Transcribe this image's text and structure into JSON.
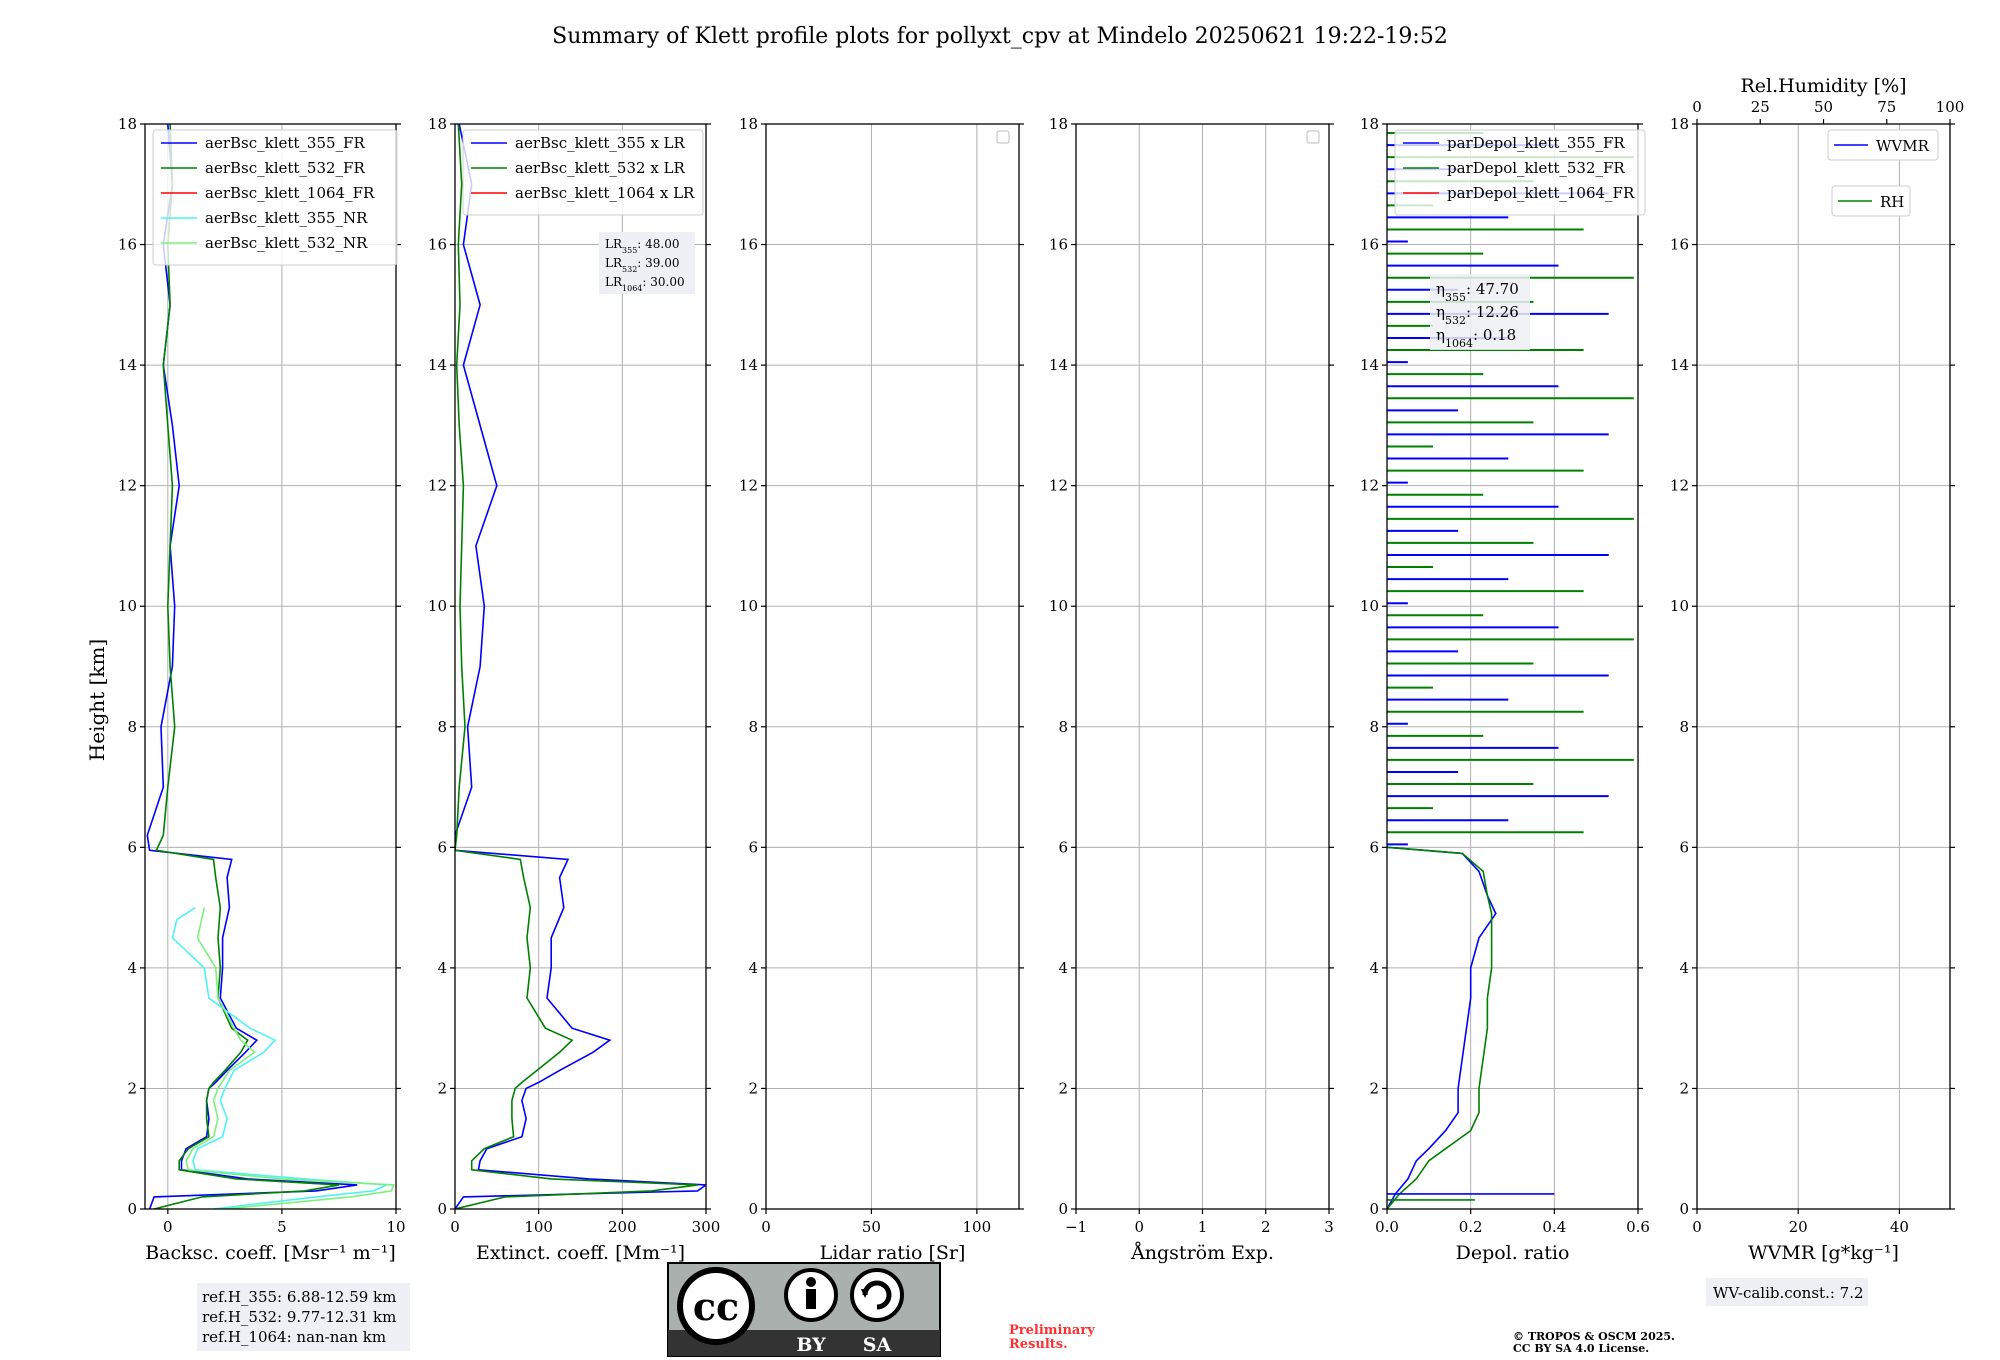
{
  "title": "Summary of Klett profile plots for pollyxt_cpv at Mindelo 20250621 19:22-19:52",
  "ylabel": "Height [km]",
  "colors": {
    "b355": "#0000ff",
    "b532": "#008000",
    "b1064": "#ff0000",
    "nr355": "#4ef3f3",
    "nr532": "#7ef07e",
    "grid": "#b0b0b0",
    "legend_bg": "#eef0f5"
  },
  "chart_data": [
    {
      "type": "line",
      "id": "bsc",
      "xlabel": "Backsc. coeff. [Msr⁻¹ m⁻¹]",
      "xlim": [
        -1,
        10
      ],
      "xticks": [
        0,
        5,
        10
      ],
      "xtick_labels": [
        "0",
        "5",
        "10"
      ],
      "ylim": [
        0,
        18
      ],
      "yticks": [
        0,
        2,
        4,
        6,
        8,
        10,
        12,
        14,
        16,
        18
      ],
      "legend": [
        "aerBsc_klett_355_FR",
        "aerBsc_klett_532_FR",
        "aerBsc_klett_1064_FR",
        "aerBsc_klett_355_NR",
        "aerBsc_klett_532_NR"
      ],
      "series": [
        {
          "name": "aerBsc_klett_355_FR",
          "y": [
            0,
            0.2,
            0.3,
            0.4,
            0.5,
            0.65,
            0.8,
            1.0,
            1.2,
            1.5,
            1.8,
            2.0,
            2.1,
            2.3,
            2.6,
            2.8,
            3.0,
            3.5,
            4.0,
            4.5,
            5.0,
            5.5,
            5.8,
            5.95,
            6.2,
            7,
            8,
            9,
            10,
            11,
            12,
            13,
            14,
            15,
            16,
            17,
            18
          ],
          "x": [
            -0.8,
            -0.6,
            6.5,
            8.3,
            3.5,
            0.6,
            0.6,
            0.8,
            1.7,
            1.8,
            1.7,
            1.8,
            2.1,
            2.6,
            3.4,
            3.9,
            3.0,
            2.3,
            2.4,
            2.4,
            2.7,
            2.6,
            2.8,
            -0.8,
            -0.9,
            -0.2,
            -0.3,
            0.2,
            0.3,
            0.1,
            0.5,
            0.2,
            -0.2,
            0.1,
            -0.2,
            0.2,
            0.0
          ]
        },
        {
          "name": "aerBsc_klett_532_FR",
          "y": [
            0,
            0.2,
            0.3,
            0.4,
            0.5,
            0.65,
            0.8,
            1.0,
            1.2,
            1.5,
            1.8,
            2.0,
            2.1,
            2.3,
            2.6,
            2.8,
            3.0,
            3.5,
            4.0,
            4.5,
            5.0,
            5.5,
            5.8,
            5.95,
            6.2,
            7,
            8,
            9,
            10,
            11,
            12,
            13,
            14,
            15,
            16,
            17,
            18
          ],
          "x": [
            -0.6,
            1.5,
            6.0,
            7.5,
            3.0,
            0.5,
            0.5,
            0.9,
            1.8,
            1.7,
            1.7,
            1.8,
            2.0,
            2.5,
            3.2,
            3.5,
            2.8,
            2.2,
            2.3,
            2.2,
            2.3,
            2.1,
            2.0,
            -0.5,
            -0.2,
            0.0,
            0.3,
            0.1,
            0.0,
            0.1,
            0.2,
            0.0,
            -0.2,
            0.1,
            0.0,
            0.2,
            0.1
          ]
        },
        {
          "name": "aerBsc_klett_355_NR",
          "y": [
            0,
            0.2,
            0.3,
            0.4,
            0.5,
            0.65,
            0.8,
            1.0,
            1.2,
            1.5,
            1.8,
            2.0,
            2.3,
            2.6,
            2.8,
            3.0,
            3.5,
            4.0,
            4.5,
            4.8,
            5.0
          ],
          "x": [
            2.0,
            6.5,
            9.0,
            9.6,
            6.0,
            1.2,
            1.1,
            1.3,
            2.4,
            2.6,
            2.3,
            2.5,
            2.9,
            4.2,
            4.7,
            3.6,
            1.8,
            1.6,
            0.2,
            0.4,
            1.2
          ]
        },
        {
          "name": "aerBsc_klett_532_NR",
          "y": [
            0,
            0.2,
            0.3,
            0.4,
            0.5,
            0.65,
            0.8,
            1.0,
            1.2,
            1.5,
            1.8,
            2.0,
            2.3,
            2.6,
            2.8,
            3.0,
            3.5,
            4.0,
            4.5,
            5.0
          ],
          "x": [
            2.5,
            8.0,
            9.8,
            9.9,
            5.0,
            0.9,
            0.8,
            1.1,
            2.0,
            2.2,
            2.0,
            2.2,
            2.7,
            3.8,
            3.2,
            2.9,
            2.2,
            2.1,
            1.3,
            1.6
          ]
        }
      ],
      "annotation": [
        "ref.H_355: 6.88-12.59 km",
        "ref.H_532: 9.77-12.31 km",
        "ref.H_1064: nan-nan km"
      ]
    },
    {
      "type": "line",
      "id": "ext",
      "xlabel": "Extinct. coeff. [Mm⁻¹]",
      "xlim": [
        0,
        300
      ],
      "xticks": [
        0,
        100,
        200,
        300
      ],
      "xtick_labels": [
        "0",
        "100",
        "200",
        "300"
      ],
      "ylim": [
        0,
        18
      ],
      "yticks": [
        0,
        2,
        4,
        6,
        8,
        10,
        12,
        14,
        16,
        18
      ],
      "legend": [
        "aerBsc_klett_355 x LR",
        "aerBsc_klett_532 x LR",
        "aerBsc_klett_1064 x LR"
      ],
      "series": [
        {
          "name": "aerBsc_klett_355 x LR",
          "y": [
            0,
            0.2,
            0.3,
            0.4,
            0.5,
            0.65,
            0.8,
            1.0,
            1.2,
            1.5,
            1.8,
            2.0,
            2.1,
            2.3,
            2.6,
            2.8,
            3.0,
            3.5,
            4.0,
            4.5,
            5.0,
            5.5,
            5.8,
            5.95,
            6.2,
            7,
            8,
            9,
            10,
            11,
            12,
            13,
            14,
            15,
            16,
            17,
            18
          ],
          "x": [
            0,
            10,
            290,
            300,
            160,
            28,
            30,
            38,
            80,
            85,
            80,
            85,
            100,
            125,
            165,
            185,
            140,
            110,
            115,
            115,
            130,
            125,
            135,
            0,
            0,
            20,
            15,
            30,
            35,
            25,
            50,
            30,
            10,
            30,
            10,
            20,
            5
          ]
        },
        {
          "name": "aerBsc_klett_532 x LR",
          "y": [
            0,
            0.2,
            0.3,
            0.4,
            0.5,
            0.65,
            0.8,
            1.0,
            1.2,
            1.5,
            1.8,
            2.0,
            2.1,
            2.3,
            2.6,
            2.8,
            3.0,
            3.5,
            4.0,
            4.5,
            5.0,
            5.5,
            5.8,
            5.95,
            6.2,
            7,
            8,
            9,
            10,
            11,
            12,
            13,
            14,
            15,
            16,
            17,
            18
          ],
          "x": [
            0,
            60,
            235,
            290,
            115,
            20,
            20,
            35,
            70,
            68,
            68,
            72,
            80,
            98,
            125,
            140,
            108,
            86,
            90,
            86,
            90,
            82,
            78,
            0,
            2,
            5,
            12,
            8,
            6,
            8,
            10,
            5,
            2,
            6,
            4,
            8,
            4
          ]
        }
      ],
      "annotation": [
        "LR355: 48.00",
        "LR532: 39.00",
        "LR1064: 30.00"
      ]
    },
    {
      "type": "line",
      "id": "lr",
      "xlabel": "Lidar ratio [Sr]",
      "xlim": [
        0,
        120
      ],
      "xticks": [
        0,
        50,
        100
      ],
      "xtick_labels": [
        "0",
        "50",
        "100"
      ],
      "ylim": [
        0,
        18
      ],
      "yticks": [
        0,
        2,
        4,
        6,
        8,
        10,
        12,
        14,
        16,
        18
      ],
      "series": []
    },
    {
      "type": "line",
      "id": "ae",
      "xlabel": "Ångström Exp.",
      "xlim": [
        -1,
        3
      ],
      "xticks": [
        -1,
        0,
        1,
        2,
        3
      ],
      "xtick_labels": [
        "−1",
        "0",
        "1",
        "2",
        "3"
      ],
      "ylim": [
        0,
        18
      ],
      "yticks": [
        0,
        2,
        4,
        6,
        8,
        10,
        12,
        14,
        16,
        18
      ],
      "series": []
    },
    {
      "type": "line",
      "id": "depol",
      "xlabel": "Depol. ratio",
      "xlim": [
        0,
        0.6
      ],
      "xticks": [
        0,
        0.2,
        0.4,
        0.6
      ],
      "xtick_labels": [
        "0.0",
        "0.2",
        "0.4",
        "0.6"
      ],
      "ylim": [
        0,
        18
      ],
      "yticks": [
        0,
        2,
        4,
        6,
        8,
        10,
        12,
        14,
        16,
        18
      ],
      "legend": [
        "parDepol_klett_355_FR",
        "parDepol_klett_532_FR",
        "parDepol_klett_1064_FR"
      ],
      "series": [
        {
          "name": "parDepol_klett_355_FR",
          "y": [
            0,
            0.25,
            0.5,
            0.8,
            1.0,
            1.3,
            1.6,
            2.0,
            2.5,
            3.0,
            3.5,
            4.0,
            4.5,
            4.9,
            5.2,
            5.6,
            5.9,
            6.0
          ],
          "x": [
            0.0,
            0.02,
            0.05,
            0.07,
            0.1,
            0.14,
            0.17,
            0.17,
            0.18,
            0.19,
            0.2,
            0.2,
            0.22,
            0.26,
            0.24,
            0.22,
            0.18,
            0.0
          ]
        },
        {
          "name": "parDepol_klett_532_FR",
          "y": [
            0,
            0.25,
            0.5,
            0.8,
            1.0,
            1.3,
            1.6,
            2.0,
            2.5,
            3.0,
            3.5,
            4.0,
            4.5,
            4.9,
            5.2,
            5.6,
            5.9,
            6.0
          ],
          "x": [
            0.0,
            0.03,
            0.07,
            0.1,
            0.14,
            0.2,
            0.22,
            0.22,
            0.23,
            0.24,
            0.24,
            0.25,
            0.25,
            0.25,
            0.24,
            0.23,
            0.18,
            0.0
          ]
        }
      ],
      "annotation": [
        "η355: 47.70",
        "η532: 12.26",
        "η1064: 0.18"
      ]
    },
    {
      "type": "line",
      "id": "wv",
      "xlabel": "WVMR [g*kg⁻¹]",
      "xlim": [
        0,
        50
      ],
      "xticks": [
        0,
        20,
        40
      ],
      "xtick_labels": [
        "0",
        "20",
        "40"
      ],
      "top_label": "Rel.Humidity [%]",
      "top_xticks": [
        0,
        25,
        50,
        75,
        100
      ],
      "top_xtick_labels": [
        "0",
        "25",
        "50",
        "75",
        "100"
      ],
      "ylim": [
        0,
        18
      ],
      "yticks": [
        0,
        2,
        4,
        6,
        8,
        10,
        12,
        14,
        16,
        18
      ],
      "legend": [
        "WVMR",
        "RH"
      ],
      "series": [],
      "annotation": [
        "WV-calib.const.: 7.2"
      ]
    }
  ],
  "footer": {
    "cc_label_by": "BY",
    "cc_label_sa": "SA",
    "cc_label_cc": "cc",
    "preliminary_1": "Preliminary",
    "preliminary_2": "Results.",
    "copyright_1": "© TROPOS & OSCM 2025.",
    "copyright_2": "CC BY SA 4.0 License."
  }
}
